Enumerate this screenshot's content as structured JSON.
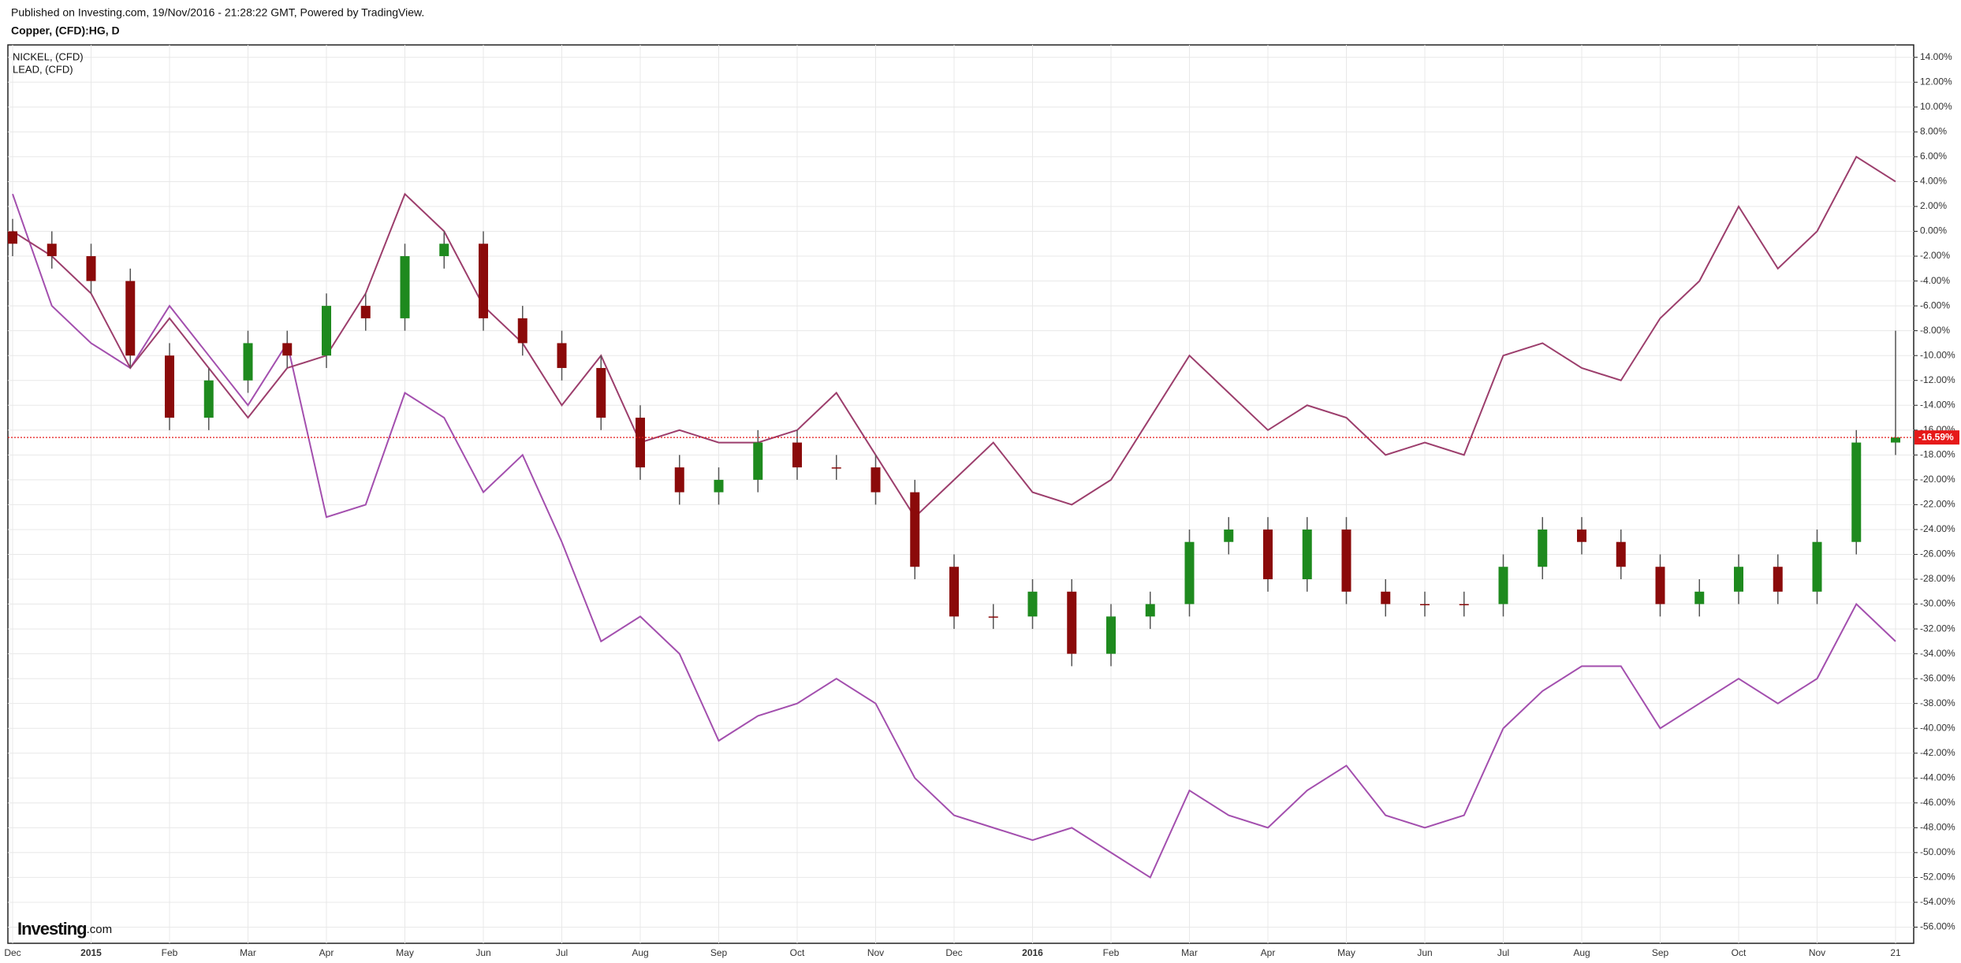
{
  "header": {
    "published": "Published on Investing.com, 19/Nov/2016 - 21:28:22 GMT, Powered by TradingView.",
    "symbol": "Copper, (CFD):HG, D"
  },
  "watermark": "Investing",
  "watermark_suffix": ".com",
  "chart_data": {
    "type": "candlestick",
    "title": "Copper, (CFD):HG, D",
    "categories": [
      "Dec",
      null,
      "2015",
      null,
      "Feb",
      null,
      "Mar",
      null,
      "Apr",
      null,
      "May",
      null,
      "Jun",
      null,
      "Jul",
      null,
      "Aug",
      null,
      "Sep",
      null,
      "Oct",
      null,
      "Nov",
      null,
      "Dec",
      null,
      "2016",
      null,
      "Feb",
      null,
      "Mar",
      null,
      "Apr",
      null,
      "May",
      null,
      "Jun",
      null,
      "Jul",
      null,
      "Aug",
      null,
      "Sep",
      null,
      "Oct",
      null,
      "Nov",
      null,
      "21"
    ],
    "open": [
      0,
      -1,
      -2,
      -4,
      -10,
      -15,
      -12,
      -9,
      -10,
      -6,
      -7,
      -2,
      -1,
      -7,
      -9,
      -11,
      -15,
      -19,
      -21,
      -20,
      -17,
      -19,
      -19,
      -21,
      -27,
      -31,
      -31,
      -29,
      -34,
      -31,
      -30,
      -25,
      -24,
      -28,
      -24,
      -29,
      -30,
      -30,
      -30,
      -27,
      -24,
      -25,
      -27,
      -30,
      -29,
      -27,
      -29,
      -25,
      -17
    ],
    "high": [
      1,
      0,
      -1,
      -3,
      -9,
      -11,
      -8,
      -8,
      -5,
      -5,
      -1,
      0,
      0,
      -6,
      -8,
      -10,
      -14,
      -18,
      -19,
      -16,
      -16,
      -18,
      -18,
      -20,
      -26,
      -30,
      -28,
      -28,
      -30,
      -29,
      -24,
      -23,
      -23,
      -23,
      -23,
      -28,
      -29,
      -29,
      -26,
      -23,
      -23,
      -24,
      -26,
      -28,
      -26,
      -26,
      -24,
      -16,
      -8
    ],
    "low": [
      -2,
      -3,
      -5,
      -11,
      -16,
      -16,
      -13,
      -11,
      -11,
      -8,
      -8,
      -3,
      -8,
      -10,
      -12,
      -16,
      -20,
      -22,
      -22,
      -21,
      -20,
      -20,
      -22,
      -28,
      -32,
      -32,
      -32,
      -35,
      -35,
      -32,
      -31,
      -26,
      -29,
      -29,
      -30,
      -31,
      -31,
      -31,
      -31,
      -28,
      -26,
      -28,
      -31,
      -31,
      -30,
      -30,
      -30,
      -26,
      -18
    ],
    "close": [
      -1,
      -2,
      -4,
      -10,
      -15,
      -12,
      -9,
      -10,
      -6,
      -7,
      -2,
      -1,
      -7,
      -9,
      -11,
      -15,
      -19,
      -21,
      -20,
      -17,
      -19,
      -19,
      -21,
      -27,
      -31,
      -31,
      -29,
      -34,
      -31,
      -30,
      -25,
      -24,
      -28,
      -24,
      -29,
      -30,
      -30,
      -30,
      -27,
      -24,
      -25,
      -27,
      -30,
      -29,
      -27,
      -29,
      -25,
      -17,
      -16.59
    ],
    "close_label": "-16.59%",
    "up_color": "#1e8a1e",
    "down_color": "#8b0a0a",
    "last_color": "#e61919",
    "series": [
      {
        "name": "NICKEL,  (CFD)",
        "type": "line",
        "color": "#a34fae",
        "values": [
          3,
          -6,
          -9,
          -11,
          -6,
          -10,
          -14,
          -9,
          -23,
          -22,
          -13,
          -15,
          -21,
          -18,
          -25,
          -33,
          -31,
          -34,
          -41,
          -39,
          -38,
          -36,
          -38,
          -44,
          -47,
          -48,
          -49,
          -48,
          -50,
          -52,
          -45,
          -47,
          -48,
          -45,
          -43,
          -47,
          -48,
          -47,
          -40,
          -37,
          -35,
          -35,
          -40,
          -38,
          -36,
          -38,
          -36,
          -30,
          -33
        ]
      },
      {
        "name": "LEAD,  (CFD)",
        "type": "line",
        "color": "#9c3e6c",
        "values": [
          0,
          -2,
          -5,
          -11,
          -7,
          -11,
          -15,
          -11,
          -10,
          -5,
          3,
          0,
          -6,
          -9,
          -14,
          -10,
          -17,
          -16,
          -17,
          -17,
          -16,
          -13,
          -18,
          -23,
          -20,
          -17,
          -21,
          -22,
          -20,
          -15,
          -10,
          -13,
          -16,
          -14,
          -15,
          -18,
          -17,
          -18,
          -10,
          -9,
          -11,
          -12,
          -7,
          -4,
          2,
          -3,
          0,
          6,
          4
        ]
      }
    ],
    "ylim": [
      -57.3,
      15
    ],
    "yticks": [
      {
        "value": 14,
        "label": "14.00%"
      },
      {
        "value": 12,
        "label": "12.00%"
      },
      {
        "value": 10,
        "label": "10.00%"
      },
      {
        "value": 8,
        "label": "8.00%"
      },
      {
        "value": 6,
        "label": "6.00%"
      },
      {
        "value": 4,
        "label": "4.00%"
      },
      {
        "value": 2,
        "label": "2.00%"
      },
      {
        "value": 0,
        "label": "0.00%"
      },
      {
        "value": -2,
        "label": "-2.00%"
      },
      {
        "value": -4,
        "label": "-4.00%"
      },
      {
        "value": -6,
        "label": "-6.00%"
      },
      {
        "value": -8,
        "label": "-8.00%"
      },
      {
        "value": -10,
        "label": "-10.00%"
      },
      {
        "value": -12,
        "label": "-12.00%"
      },
      {
        "value": -14,
        "label": "-14.00%"
      },
      {
        "value": -16,
        "label": "-16.00%"
      },
      {
        "value": -18,
        "label": "-18.00%"
      },
      {
        "value": -20,
        "label": "-20.00%"
      },
      {
        "value": -22,
        "label": "-22.00%"
      },
      {
        "value": -24,
        "label": "-24.00%"
      },
      {
        "value": -26,
        "label": "-26.00%"
      },
      {
        "value": -28,
        "label": "-28.00%"
      },
      {
        "value": -30,
        "label": "-30.00%"
      },
      {
        "value": -32,
        "label": "-32.00%"
      },
      {
        "value": -34,
        "label": "-34.00%"
      },
      {
        "value": -36,
        "label": "-36.00%"
      },
      {
        "value": -38,
        "label": "-38.00%"
      },
      {
        "value": -40,
        "label": "-40.00%"
      },
      {
        "value": -42,
        "label": "-42.00%"
      },
      {
        "value": -44,
        "label": "-44.00%"
      },
      {
        "value": -46,
        "label": "-46.00%"
      },
      {
        "value": -48,
        "label": "-48.00%"
      },
      {
        "value": -50,
        "label": "-50.00%"
      },
      {
        "value": -52,
        "label": "-52.00%"
      },
      {
        "value": -54,
        "label": "-54.00%"
      },
      {
        "value": -56,
        "label": "-56.00%"
      }
    ],
    "grid": true
  }
}
